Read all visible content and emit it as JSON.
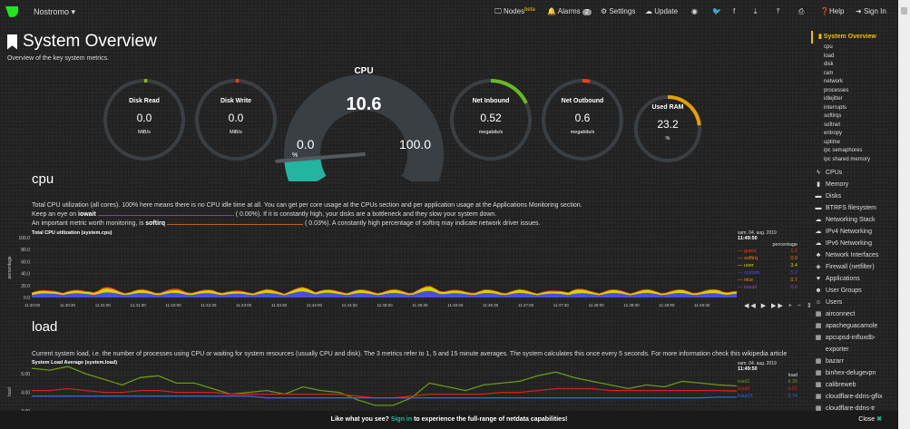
{
  "nav": {
    "brand": "Nostromo",
    "items": [
      {
        "label": "Nodes",
        "sup": "beta"
      },
      {
        "label": "Alarms",
        "badge": "2"
      },
      {
        "label": "Settings"
      },
      {
        "label": "Update"
      },
      {
        "label": "Help"
      },
      {
        "label": "Sign In"
      }
    ],
    "icons": [
      "github-icon",
      "twitter-icon",
      "facebook-icon",
      "download-icon",
      "upload-icon",
      "print-icon"
    ]
  },
  "page": {
    "title": "System Overview",
    "subtitle": "Overview of the key system metrics."
  },
  "gauges": [
    {
      "label": "Disk Read",
      "value": "0.0",
      "unit": "MiB/s",
      "color": "#88c000",
      "fill": 0.01
    },
    {
      "label": "Disk Write",
      "value": "0.0",
      "unit": "MiB/s",
      "color": "#ff3b10",
      "fill": 0.01
    },
    {
      "label": "Net Inbound",
      "value": "0.52",
      "unit": "megabits/s",
      "color": "#66bb22",
      "fill": 0.18
    },
    {
      "label": "Net Outbound",
      "value": "0.6",
      "unit": "megabits/s",
      "color": "#ff3b10",
      "fill": 0.03
    },
    {
      "label": "Used RAM",
      "value": "23.2",
      "unit": "%",
      "color": "#e8a000",
      "fill": 0.232
    }
  ],
  "cpu_gauge": {
    "label": "CPU",
    "value": "10.6",
    "min": "0.0",
    "max": "100.0",
    "unit": "%",
    "color": "#22b5a0"
  },
  "cpu_section": {
    "title": "cpu",
    "desc1": "Total CPU utilization (all cores). 100% here means there is no CPU idle time at all. You can get per core usage at the CPUs section and per application usage at the Applications Monitoring section.",
    "desc2a": "Keep an eye on ",
    "desc2b": "iowait",
    "desc2c": "(      0.00%). If it is constantly high, your disks are a bottleneck and they slow your system down.",
    "desc3a": "An important metric worth monitoring, is ",
    "desc3b": "softirq",
    "desc3c": "(      0.03%). A constantly high percentage of softirq may indicate network driver issues."
  },
  "load_section": {
    "title": "load",
    "desc": "Current system load, i.e. the number of processes using CPU or waiting for system resources (usually CPU and disk). The 3 metrics refer to 1, 5 and 15 minute averages. The system calculates this once every 5 seconds. For more information check this wikipedia article"
  },
  "chart_data": [
    {
      "type": "area",
      "title": "Total CPU utilization (system.cpu)",
      "ylabel": "percentage",
      "ylim": [
        0,
        100
      ],
      "yticks": [
        "100.0",
        "80.0",
        "60.0",
        "40.0",
        "20.0",
        "0.0"
      ],
      "xticks": [
        "11:40:00",
        "11:40:30",
        "11:41:00",
        "11:41:30",
        "11:42:00",
        "11:42:30",
        "11:43:00",
        "11:43:30",
        "11:44:00",
        "11:44:30",
        "11:45:00",
        "11:45:30",
        "11:46:00",
        "11:46:30",
        "11:47:00",
        "11:47:30",
        "11:48:00",
        "11:48:30",
        "11:49:00",
        "11:49:30"
      ],
      "date": "sam. 04. aug. 2019",
      "time": "11:49:50",
      "legend_title": "percentage",
      "series": [
        {
          "name": "guest",
          "value": "1.2",
          "color": "#ff3b10"
        },
        {
          "name": "softirq",
          "value": "0.0",
          "color": "#ff7f0e"
        },
        {
          "name": "user",
          "value": "3.4",
          "color": "#d4d400"
        },
        {
          "name": "system",
          "value": "5.2",
          "color": "#4c4ce0"
        },
        {
          "name": "nice",
          "value": "0.7",
          "color": "#ff8c00"
        },
        {
          "name": "iowait",
          "value": "0.0",
          "color": "#a040c0"
        }
      ],
      "stack_values": {
        "system": [
          6,
          5,
          6,
          5,
          7,
          5,
          6,
          5,
          6,
          5,
          6,
          5,
          5,
          6,
          5,
          8,
          7,
          5,
          6,
          5,
          6,
          5,
          9,
          6,
          5,
          6,
          5,
          6,
          5,
          5,
          6,
          5,
          6,
          5,
          6,
          5,
          6,
          5,
          6,
          5
        ],
        "user": [
          5,
          3,
          4,
          3,
          6,
          3,
          4,
          3,
          4,
          3,
          4,
          3,
          3,
          4,
          3,
          5,
          4,
          3,
          4,
          3,
          4,
          3,
          6,
          4,
          3,
          4,
          3,
          4,
          3,
          3,
          6,
          3,
          4,
          3,
          4,
          3,
          4,
          3,
          5,
          3
        ],
        "guest": [
          1,
          1,
          1,
          1,
          2,
          1,
          1,
          1,
          2,
          1,
          1,
          1,
          1,
          1,
          1,
          1,
          1,
          1,
          1,
          1,
          1,
          1,
          1,
          1,
          1,
          1,
          1,
          1,
          1,
          1,
          1,
          1,
          1,
          1,
          1,
          1,
          1,
          1,
          1,
          1
        ]
      }
    },
    {
      "type": "line",
      "title": "System Load Average (system.load)",
      "ylabel": "load",
      "ylim": [
        2.9,
        5.6
      ],
      "yticks": [
        "5.00",
        "4.00",
        "3.00"
      ],
      "date": "sam. 04. aug. 2019",
      "time": "11:49:50",
      "legend_title": "load",
      "series": [
        {
          "name": "load1",
          "value": "4.35",
          "color": "#6a9a10",
          "values": [
            5.3,
            5.2,
            5.4,
            5.0,
            4.7,
            4.4,
            4.8,
            4.9,
            4.5,
            4.5,
            4.2,
            3.9,
            4.0,
            4.1,
            3.9,
            4.3,
            4.1,
            4.0,
            3.6,
            3.3,
            3.3,
            3.7,
            4.5,
            4.3,
            4.1,
            4.4,
            4.5,
            4.6,
            4.9,
            5.1,
            4.8,
            4.6,
            4.4,
            4.2,
            4.4,
            4.3,
            4.6,
            4.5,
            4.4,
            4.35
          ]
        },
        {
          "name": "load5",
          "value": "4.07",
          "color": "#d42020",
          "values": [
            4.1,
            4.1,
            4.2,
            4.1,
            4.0,
            4.0,
            4.1,
            4.1,
            4.0,
            4.0,
            4.0,
            3.9,
            3.9,
            3.9,
            3.9,
            3.9,
            3.9,
            3.9,
            3.8,
            3.7,
            3.7,
            3.8,
            3.9,
            3.9,
            3.9,
            3.9,
            4.0,
            4.0,
            4.1,
            4.2,
            4.2,
            4.2,
            4.1,
            4.1,
            4.1,
            4.1,
            4.1,
            4.1,
            4.1,
            4.07
          ]
        },
        {
          "name": "load15",
          "value": "3.74",
          "color": "#3366cc",
          "values": [
            3.8,
            3.8,
            3.8,
            3.8,
            3.8,
            3.8,
            3.8,
            3.8,
            3.8,
            3.8,
            3.8,
            3.8,
            3.8,
            3.7,
            3.7,
            3.7,
            3.7,
            3.7,
            3.7,
            3.7,
            3.7,
            3.7,
            3.7,
            3.7,
            3.7,
            3.7,
            3.7,
            3.7,
            3.7,
            3.7,
            3.7,
            3.7,
            3.7,
            3.7,
            3.7,
            3.7,
            3.7,
            3.7,
            3.74,
            3.74
          ]
        }
      ]
    }
  ],
  "sidebar": {
    "active": "System Overview",
    "sub": [
      "cpu",
      "load",
      "disk",
      "ram",
      "network",
      "processes",
      "idlejitter",
      "interrupts",
      "softirqs",
      "softnet",
      "entropy",
      "uptime",
      "ipc semaphores",
      "ipc shared memory"
    ],
    "menus": [
      {
        "label": "CPUs",
        "icon": "bolt-icon",
        "g": "ϟ"
      },
      {
        "label": "Memory",
        "icon": "memory-icon",
        "g": "▮"
      },
      {
        "label": "Disks",
        "icon": "disk-icon",
        "g": "▬"
      },
      {
        "label": "BTRFS filesystem",
        "icon": "folder-icon",
        "g": "▬"
      },
      {
        "label": "Networking Stack",
        "icon": "cloud-icon",
        "g": "☁"
      },
      {
        "label": "IPv4 Networking",
        "icon": "cloud-icon",
        "g": "☁"
      },
      {
        "label": "IPv6 Networking",
        "icon": "cloud-icon",
        "g": "☁"
      },
      {
        "label": "Network Interfaces",
        "icon": "sitemap-icon",
        "g": "♣"
      },
      {
        "label": "Firewall (netfilter)",
        "icon": "shield-icon",
        "g": "◈"
      },
      {
        "label": "Applications",
        "icon": "heartbeat-icon",
        "g": "♥"
      },
      {
        "label": "User Groups",
        "icon": "users-icon",
        "g": "☻"
      },
      {
        "label": "Users",
        "icon": "user-icon",
        "g": "☺"
      },
      {
        "label": "airconnect",
        "icon": "grid-icon",
        "g": "▦"
      },
      {
        "label": "apacheguacamole",
        "icon": "grid-icon",
        "g": "▦"
      },
      {
        "label": "apcupsd-influxdb-exporter",
        "icon": "grid-icon",
        "g": "▦"
      },
      {
        "label": "bazarr",
        "icon": "grid-icon",
        "g": "▦"
      },
      {
        "label": "binhex-delugevpn",
        "icon": "grid-icon",
        "g": "▦"
      },
      {
        "label": "calibreweb",
        "icon": "grid-icon",
        "g": "▦"
      },
      {
        "label": "cloudflare-ddns-gflix",
        "icon": "grid-icon",
        "g": "▦"
      },
      {
        "label": "cloudflare-ddns-tr",
        "icon": "grid-icon",
        "g": "▦"
      }
    ]
  },
  "footer": {
    "a": "Like what you see? ",
    "link": "Sign in",
    "b": " to experience the full-range of netdata capabilities!",
    "close": "Close",
    "close_icon": "✖"
  },
  "controls": "◀◀ ▶ ▶▶ + − ⇕"
}
